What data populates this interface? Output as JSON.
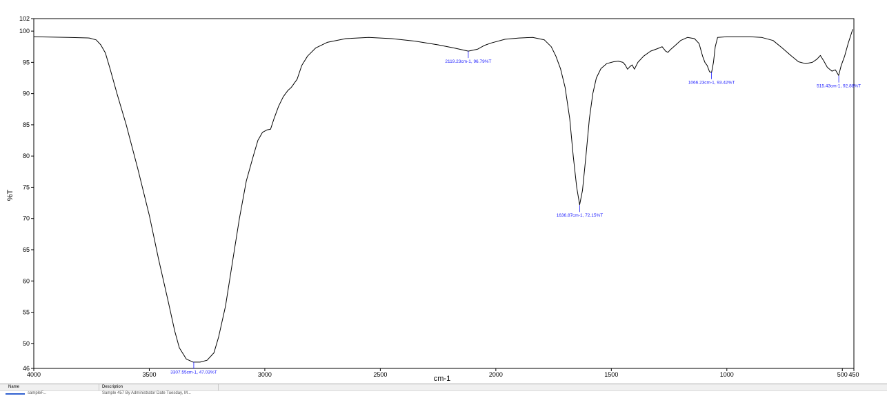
{
  "chart_data": {
    "type": "line",
    "title": "",
    "xlabel": "cm-1",
    "ylabel": "%T",
    "xlim": [
      4000,
      450
    ],
    "ylim": [
      46,
      102
    ],
    "x_reversed": true,
    "grid": false,
    "x_ticks": [
      {
        "value": 4000,
        "label": "4000"
      },
      {
        "value": 3500,
        "label": "3500"
      },
      {
        "value": 3000,
        "label": "3000"
      },
      {
        "value": 2500,
        "label": "2500"
      },
      {
        "value": 2000,
        "label": "2000"
      },
      {
        "value": 1500,
        "label": "1500"
      },
      {
        "value": 1000,
        "label": "1000"
      },
      {
        "value": 500,
        "label": "500"
      },
      {
        "value": 450,
        "label": "450"
      }
    ],
    "y_ticks": [
      {
        "value": 46,
        "label": "46"
      },
      {
        "value": 50,
        "label": "50"
      },
      {
        "value": 55,
        "label": "55"
      },
      {
        "value": 60,
        "label": "60"
      },
      {
        "value": 65,
        "label": "65"
      },
      {
        "value": 70,
        "label": "70"
      },
      {
        "value": 75,
        "label": "75"
      },
      {
        "value": 80,
        "label": "80"
      },
      {
        "value": 85,
        "label": "85"
      },
      {
        "value": 90,
        "label": "90"
      },
      {
        "value": 95,
        "label": "95"
      },
      {
        "value": 100,
        "label": "100"
      },
      {
        "value": 102,
        "label": "102"
      }
    ],
    "series": [
      {
        "color": "#000000",
        "points": [
          [
            4000,
            99.1
          ],
          [
            3850,
            99.0
          ],
          [
            3760,
            98.9
          ],
          [
            3730,
            98.6
          ],
          [
            3710,
            97.8
          ],
          [
            3690,
            96.5
          ],
          [
            3670,
            94.0
          ],
          [
            3640,
            90.0
          ],
          [
            3600,
            85.0
          ],
          [
            3550,
            78.0
          ],
          [
            3500,
            70.5
          ],
          [
            3460,
            63.5
          ],
          [
            3420,
            57.0
          ],
          [
            3390,
            52.0
          ],
          [
            3370,
            49.3
          ],
          [
            3340,
            47.5
          ],
          [
            3310,
            47.0
          ],
          [
            3280,
            47.0
          ],
          [
            3250,
            47.3
          ],
          [
            3220,
            48.5
          ],
          [
            3200,
            51.0
          ],
          [
            3170,
            56.0
          ],
          [
            3140,
            63.0
          ],
          [
            3110,
            70.0
          ],
          [
            3080,
            76.0
          ],
          [
            3050,
            80.0
          ],
          [
            3030,
            82.5
          ],
          [
            3010,
            83.8
          ],
          [
            2990,
            84.2
          ],
          [
            2975,
            84.3
          ],
          [
            2960,
            86.0
          ],
          [
            2940,
            88.0
          ],
          [
            2920,
            89.5
          ],
          [
            2900,
            90.5
          ],
          [
            2885,
            91.0
          ],
          [
            2860,
            92.3
          ],
          [
            2840,
            94.5
          ],
          [
            2815,
            96.0
          ],
          [
            2780,
            97.3
          ],
          [
            2730,
            98.2
          ],
          [
            2650,
            98.8
          ],
          [
            2550,
            99.0
          ],
          [
            2450,
            98.8
          ],
          [
            2350,
            98.4
          ],
          [
            2250,
            97.8
          ],
          [
            2180,
            97.3
          ],
          [
            2119,
            96.8
          ],
          [
            2080,
            97.1
          ],
          [
            2050,
            97.7
          ],
          [
            2020,
            98.1
          ],
          [
            1960,
            98.7
          ],
          [
            1900,
            98.9
          ],
          [
            1840,
            99.0
          ],
          [
            1790,
            98.6
          ],
          [
            1760,
            97.5
          ],
          [
            1740,
            96.0
          ],
          [
            1720,
            94.0
          ],
          [
            1700,
            91.0
          ],
          [
            1680,
            86.0
          ],
          [
            1665,
            80.0
          ],
          [
            1650,
            75.0
          ],
          [
            1637,
            72.2
          ],
          [
            1625,
            74.5
          ],
          [
            1610,
            80.0
          ],
          [
            1595,
            86.0
          ],
          [
            1580,
            90.0
          ],
          [
            1565,
            92.5
          ],
          [
            1545,
            94.0
          ],
          [
            1520,
            94.8
          ],
          [
            1490,
            95.1
          ],
          [
            1470,
            95.2
          ],
          [
            1450,
            95.0
          ],
          [
            1440,
            94.6
          ],
          [
            1430,
            93.9
          ],
          [
            1420,
            94.3
          ],
          [
            1410,
            94.6
          ],
          [
            1400,
            93.9
          ],
          [
            1385,
            95.0
          ],
          [
            1360,
            96.0
          ],
          [
            1330,
            96.8
          ],
          [
            1300,
            97.2
          ],
          [
            1280,
            97.5
          ],
          [
            1265,
            96.8
          ],
          [
            1255,
            96.6
          ],
          [
            1245,
            97.0
          ],
          [
            1230,
            97.5
          ],
          [
            1200,
            98.5
          ],
          [
            1170,
            99.0
          ],
          [
            1140,
            98.8
          ],
          [
            1120,
            98.0
          ],
          [
            1105,
            96.0
          ],
          [
            1095,
            95.0
          ],
          [
            1085,
            94.5
          ],
          [
            1075,
            93.5
          ],
          [
            1066,
            93.4
          ],
          [
            1058,
            95.0
          ],
          [
            1050,
            97.5
          ],
          [
            1040,
            99.0
          ],
          [
            1000,
            99.1
          ],
          [
            950,
            99.1
          ],
          [
            900,
            99.1
          ],
          [
            850,
            99.0
          ],
          [
            800,
            98.5
          ],
          [
            760,
            97.3
          ],
          [
            720,
            96.0
          ],
          [
            690,
            95.1
          ],
          [
            660,
            94.8
          ],
          [
            630,
            95.0
          ],
          [
            610,
            95.5
          ],
          [
            595,
            96.1
          ],
          [
            580,
            95.2
          ],
          [
            565,
            94.2
          ],
          [
            545,
            93.6
          ],
          [
            530,
            93.8
          ],
          [
            516,
            92.9
          ],
          [
            505,
            94.5
          ],
          [
            490,
            96.0
          ],
          [
            475,
            98.0
          ],
          [
            462,
            99.5
          ],
          [
            455,
            100.3
          ]
        ]
      }
    ],
    "annotations": [
      {
        "x": 3307.55,
        "y": 47.03,
        "label": "3307.55cm-1, 47.03%T"
      },
      {
        "x": 2119.23,
        "y": 96.79,
        "label": "2119.23cm-1, 96.79%T"
      },
      {
        "x": 1636.87,
        "y": 72.15,
        "label": "1636.87cm-1, 72.15%T"
      },
      {
        "x": 1066.23,
        "y": 93.42,
        "label": "1066.23cm-1, 93.42%T"
      },
      {
        "x": 515.43,
        "y": 92.88,
        "label": "515.43cm-1, 92.88%T"
      }
    ]
  },
  "legend_table": {
    "headers": [
      "Name",
      "Description"
    ],
    "rows": [
      {
        "name": "sampleF...",
        "description": "Sample 457 By Administrator Date Tuesday, M..."
      }
    ]
  }
}
